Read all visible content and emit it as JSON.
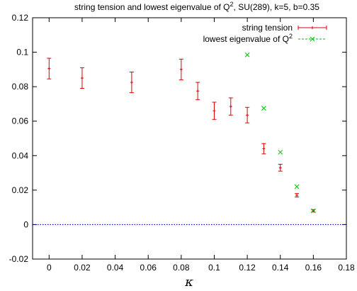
{
  "chart_data": {
    "type": "scatter",
    "title": {
      "prefix": "string tension and lowest eigenvalue of Q",
      "sup": "2",
      "suffix": ",  SU(289),  k=5,  b=0.35"
    },
    "xlabel": "κ",
    "ylabel": "",
    "xlim": [
      -0.01,
      0.18
    ],
    "ylim": [
      -0.02,
      0.12
    ],
    "xticks": [
      0,
      0.02,
      0.04,
      0.06,
      0.08,
      0.1,
      0.12,
      0.14,
      0.16,
      0.18
    ],
    "xtick_labels": [
      "0",
      "0.02",
      "0.04",
      "0.06",
      "0.08",
      "0.1",
      "0.12",
      "0.14",
      "0.16",
      "0.18"
    ],
    "yticks": [
      -0.02,
      0,
      0.02,
      0.04,
      0.06,
      0.08,
      0.1,
      0.12
    ],
    "ytick_labels": [
      "-0.02",
      "0",
      "0.02",
      "0.04",
      "0.06",
      "0.08",
      "0.1",
      "0.12"
    ],
    "zero_line": {
      "y": 0,
      "color": "#0000cc",
      "style": "dotted"
    },
    "legend": {
      "placement": "top-right",
      "entries": [
        {
          "label": "string tension",
          "sup": ""
        },
        {
          "label": "lowest eigenvalue of Q",
          "sup": "2"
        }
      ]
    },
    "series": [
      {
        "name": "string tension",
        "color": "#e00000",
        "marker": "plus",
        "errorbars": true,
        "points": [
          {
            "x": 0.0,
            "y": 0.0905,
            "err": 0.006
          },
          {
            "x": 0.02,
            "y": 0.085,
            "err": 0.006
          },
          {
            "x": 0.05,
            "y": 0.0825,
            "err": 0.006
          },
          {
            "x": 0.08,
            "y": 0.09,
            "err": 0.006
          },
          {
            "x": 0.09,
            "y": 0.0775,
            "err": 0.005
          },
          {
            "x": 0.1,
            "y": 0.066,
            "err": 0.005
          },
          {
            "x": 0.11,
            "y": 0.0685,
            "err": 0.005
          },
          {
            "x": 0.12,
            "y": 0.0635,
            "err": 0.0045
          },
          {
            "x": 0.13,
            "y": 0.044,
            "err": 0.003
          },
          {
            "x": 0.14,
            "y": 0.033,
            "err": 0.002
          },
          {
            "x": 0.15,
            "y": 0.017,
            "err": 0.001
          },
          {
            "x": 0.16,
            "y": 0.008,
            "err": 0.0007
          }
        ]
      },
      {
        "name": "lowest eigenvalue of Q²",
        "color": "#00c000",
        "marker": "cross",
        "errorbars": false,
        "points": [
          {
            "x": 0.12,
            "y": 0.0985
          },
          {
            "x": 0.13,
            "y": 0.0675
          },
          {
            "x": 0.14,
            "y": 0.042
          },
          {
            "x": 0.15,
            "y": 0.022
          },
          {
            "x": 0.16,
            "y": 0.008
          }
        ]
      }
    ]
  }
}
